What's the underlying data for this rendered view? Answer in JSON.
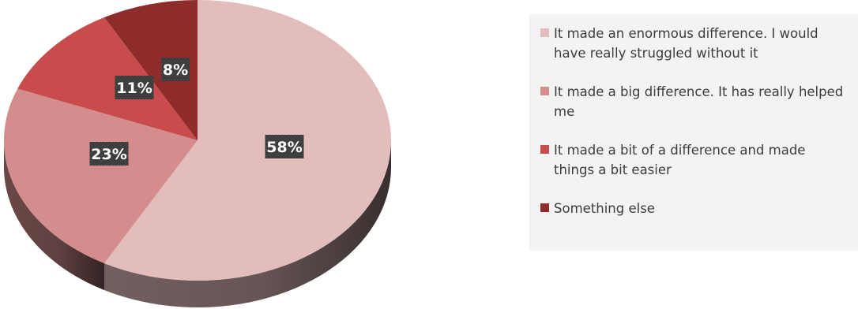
{
  "chart_data": {
    "type": "pie",
    "style": "3d",
    "categories": [
      "It made an enormous difference. I would have really struggled without it",
      "It made a big difference. It has really helped me",
      "It made a bit of a difference and made things a bit easier",
      "Something else"
    ],
    "values": [
      58,
      23,
      11,
      8
    ],
    "data_labels": [
      "58%",
      "23%",
      "11%",
      "8%"
    ],
    "colors": [
      "#e3bcbc",
      "#d38d8d",
      "#c94c4c",
      "#8e2b2b"
    ],
    "legend_position": "right",
    "title": ""
  }
}
